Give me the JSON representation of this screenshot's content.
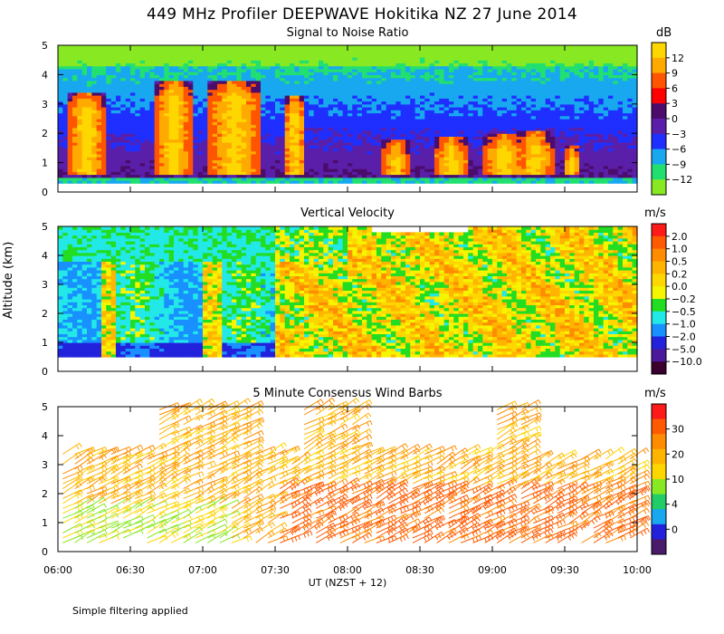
{
  "title": "449 MHz Profiler DEEPWAVE Hokitika NZ 27 June 2014",
  "ylabel": "Altitude (km)",
  "xlabel": "UT  (NZST + 12)",
  "footnote": "Simple filtering applied",
  "chart_data": [
    {
      "type": "heatmap",
      "title": "Signal to Noise Ratio",
      "unit": "dB",
      "xlim": [
        "06:00",
        "10:00"
      ],
      "ylim": [
        0,
        5
      ],
      "y_ticks": [
        "0",
        "1",
        "2",
        "3",
        "4",
        "5"
      ],
      "colorbar": {
        "labels": [
          "12",
          "9",
          "6",
          "3",
          "0",
          "−3",
          "−6",
          "−9",
          "−12"
        ],
        "colors": [
          "#ffd700",
          "#ffaa00",
          "#ff5500",
          "#ff0000",
          "#4b0c6b",
          "#5a1fa8",
          "#1f2fff",
          "#18a8f0",
          "#22e070",
          "#88e822"
        ]
      },
      "summary": "High SNR (>12 dB) plumes reaching 3-4 km near 06:10, 06:45-06:55 and 07:05-07:25; low SNR above 4 km; broad 1-2 km enhancement 08:00-09:30."
    },
    {
      "type": "heatmap",
      "title": "Vertical Velocity",
      "unit": "m/s",
      "xlim": [
        "06:00",
        "10:00"
      ],
      "ylim": [
        0,
        5
      ],
      "y_ticks": [
        "0",
        "1",
        "2",
        "3",
        "4",
        "5"
      ],
      "colorbar": {
        "labels": [
          "2.0",
          "1.0",
          "0.5",
          "0.2",
          "0.0",
          "−0.2",
          "−0.5",
          "−1.0",
          "−2.0",
          "−5.0",
          "−10.0"
        ],
        "colors": [
          "#ff1a1a",
          "#ff5a00",
          "#ff8c00",
          "#ffb400",
          "#ffd700",
          "#f5f500",
          "#22dd22",
          "#22e8e8",
          "#1890ff",
          "#2222dd",
          "#4a1a9a",
          "#3a0030"
        ]
      },
      "summary": "Downward motion (-1 to -5 m/s) before about 07:30 with strongest downdrafts below 1 km; weak upward motion (0 to 0.5 m/s) after 07:30."
    },
    {
      "type": "barbs",
      "title": "5 Minute Consensus Wind Barbs",
      "unit": "m/s",
      "xlim": [
        "06:00",
        "10:00"
      ],
      "ylim": [
        0,
        5
      ],
      "y_ticks": [
        "0",
        "1",
        "2",
        "3",
        "4",
        "5"
      ],
      "colorbar": {
        "labels": [
          "30",
          "20",
          "10",
          "4",
          "0"
        ],
        "colors": [
          "#ff1a1a",
          "#ff5a00",
          "#ff8c00",
          "#ffb400",
          "#ffd700",
          "#88e822",
          "#22cc66",
          "#18a8f0",
          "#2222dd",
          "#4a1a6b"
        ]
      },
      "summary": "Westerly to north-westerly winds of roughly 15-25 m/s; weaker 8-12 m/s near 06:00-07:00 below 1.5 km; stronger 20-25 m/s below 2 km after 07:30."
    }
  ],
  "x_ticks": [
    "06:00",
    "06:30",
    "07:00",
    "07:30",
    "08:00",
    "08:30",
    "09:00",
    "09:30",
    "10:00"
  ]
}
